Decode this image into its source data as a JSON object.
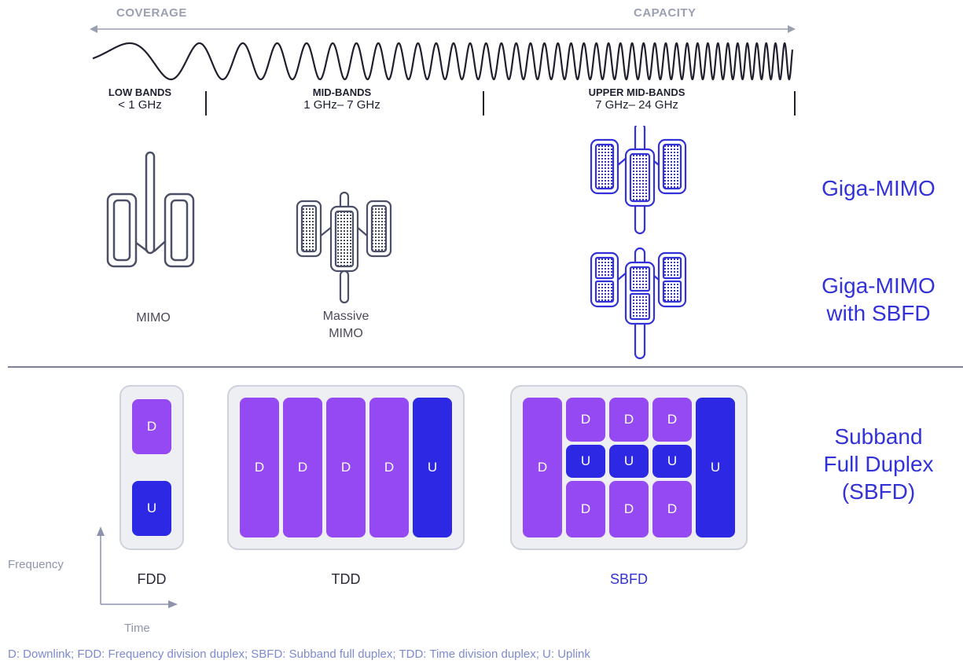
{
  "spectrum": {
    "left_label": "COVERAGE",
    "right_label": "CAPACITY",
    "bands": [
      {
        "name": "LOW BANDS",
        "range": "< 1 GHz"
      },
      {
        "name": "MID-BANDS",
        "range": "1 GHz– 7 GHz"
      },
      {
        "name": "UPPER MID-BANDS",
        "range": "7 GHz– 24 GHz"
      }
    ]
  },
  "antennas": {
    "mimo_label": "MIMO",
    "massive_label": "Massive\nMIMO"
  },
  "technologies": {
    "giga_mimo": "Giga-MIMO",
    "giga_sbfd_line1": "Giga-MIMO",
    "giga_sbfd_line2": "with SBFD",
    "sbfd_line1": "Subband",
    "sbfd_line2": "Full Duplex",
    "sbfd_line3": "(SBFD)"
  },
  "duplex": {
    "fdd_label": "FDD",
    "tdd_label": "TDD",
    "sbfd_label": "SBFD",
    "downlink": "D",
    "uplink": "U"
  },
  "axes": {
    "y_label": "Frequency",
    "x_label": "Time"
  },
  "footnote": "D: Downlink; FDD: Frequency division duplex; SBFD:  Subband full duplex; TDD: Time division duplex; U: Uplink",
  "colors": {
    "downlink": "#9549f3",
    "uplink": "#2c28e3",
    "accent_text": "#3232d8",
    "antenna_gray": "#4c5066"
  }
}
